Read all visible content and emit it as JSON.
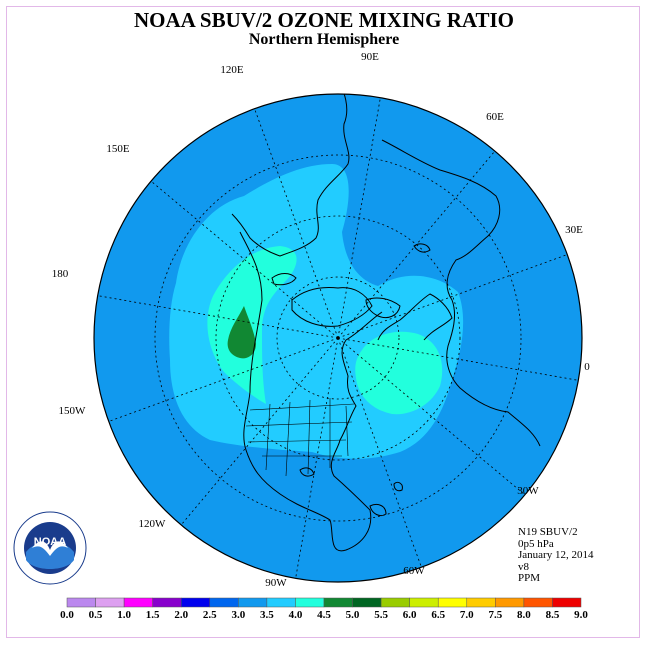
{
  "title": "NOAA SBUV/2 OZONE MIXING RATIO",
  "subtitle": "Northern Hemisphere",
  "info": {
    "satellite": "N19 SBUV/2",
    "level": "0p5 hPa",
    "date": "January 12, 2014",
    "version": "v8",
    "units": "PPM"
  },
  "longitude_labels": [
    "90E",
    "60E",
    "30E",
    "0",
    "30W",
    "60W",
    "90W",
    "120W",
    "150W",
    "180",
    "150E",
    "120E"
  ],
  "colorbar": {
    "ticks": [
      "0.0",
      "0.5",
      "1.0",
      "1.5",
      "2.0",
      "2.5",
      "3.0",
      "3.5",
      "4.0",
      "4.5",
      "5.0",
      "5.5",
      "6.0",
      "6.5",
      "7.0",
      "7.5",
      "8.0",
      "8.5",
      "9.0"
    ],
    "colors": [
      "#bb88ee",
      "#dda0f0",
      "#ff00ff",
      "#8800cc",
      "#0000ee",
      "#0066ee",
      "#1199ee",
      "#22ccff",
      "#22ffdd",
      "#118833",
      "#006622",
      "#99cc00",
      "#ccee00",
      "#ffff00",
      "#ffcc00",
      "#ff9900",
      "#ff5500",
      "#ee0000",
      "#885533"
    ]
  },
  "map_colors": {
    "ocean_disk": "#1199ee",
    "band_3_0": "#22ccff",
    "band_3_5": "#22ffdd",
    "band_4_5": "#118833",
    "outline": "#000000"
  },
  "logo_text": "NOAA"
}
